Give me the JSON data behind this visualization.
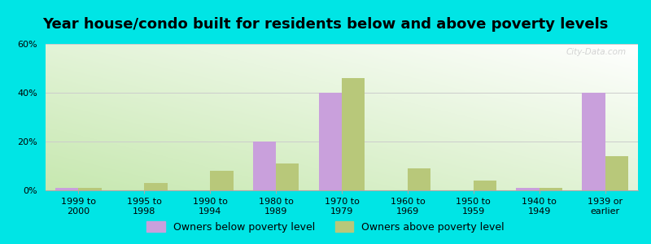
{
  "title": "Year house/condo built for residents below and above poverty levels",
  "categories": [
    "1999 to\n2000",
    "1995 to\n1998",
    "1990 to\n1994",
    "1980 to\n1989",
    "1970 to\n1979",
    "1960 to\n1969",
    "1950 to\n1959",
    "1940 to\n1949",
    "1939 or\nearlier"
  ],
  "below_poverty": [
    1,
    0,
    0,
    20,
    40,
    0,
    0,
    1,
    40
  ],
  "above_poverty": [
    1,
    3,
    8,
    11,
    46,
    9,
    4,
    1,
    14
  ],
  "below_color": "#c9a0dc",
  "above_color": "#b8c87a",
  "bar_width": 0.35,
  "ylim": [
    0,
    60
  ],
  "yticks": [
    0,
    20,
    40,
    60
  ],
  "ytick_labels": [
    "0%",
    "20%",
    "40%",
    "60%"
  ],
  "background_color": "#00e5e5",
  "grid_color": "#cccccc",
  "legend_below_label": "Owners below poverty level",
  "legend_above_label": "Owners above poverty level",
  "title_fontsize": 13,
  "tick_fontsize": 8
}
